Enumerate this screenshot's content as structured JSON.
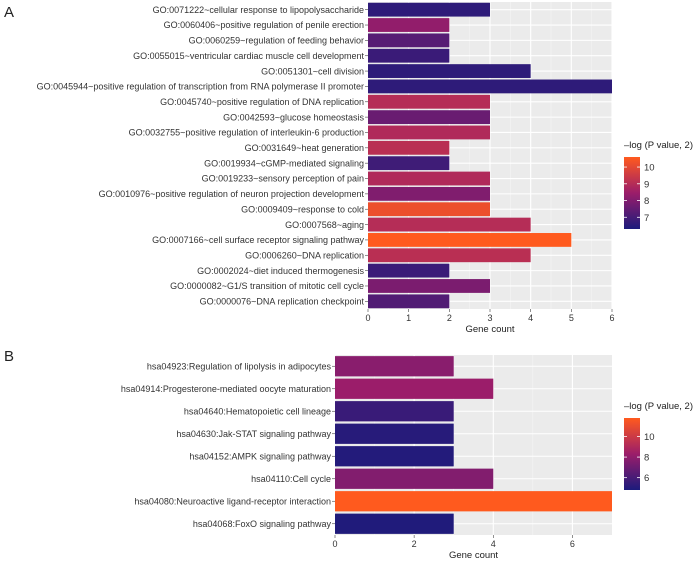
{
  "chart_data": [
    {
      "panel": "A",
      "type": "bar",
      "orientation": "horizontal",
      "xlabel": "Gene count",
      "xlim": [
        0,
        6
      ],
      "xticks": [
        0,
        1,
        2,
        3,
        4,
        5,
        6
      ],
      "grid": true,
      "legend": {
        "title": "–log (P value, 2)",
        "ticks": [
          7,
          8,
          9,
          10
        ],
        "range": [
          6.3,
          10.6
        ],
        "placement": "right"
      },
      "colors": {
        "low": "#1c1b7c",
        "mid": "#9b1d6a",
        "high": "#ff5a1e"
      },
      "categories": [
        "GO:0071222~cellular response to lipopolysaccharide",
        "GO:0060406~positive regulation of penile erection",
        "GO:0060259~regulation of feeding behavior",
        "GO:0055015~ventricular cardiac muscle cell development",
        "GO:0051301~cell division",
        "GO:0045944~positive regulation of transcription from RNA polymerase II promoter",
        "GO:0045740~positive regulation of DNA replication",
        "GO:0042593~glucose homeostasis",
        "GO:0032755~positive regulation of interleukin-6 production",
        "GO:0031649~heat generation",
        "GO:0019934~cGMP-mediated signaling",
        "GO:0019233~sensory perception of pain",
        "GO:0010976~positive regulation of neuron projection development",
        "GO:0009409~response to cold",
        "GO:0007568~aging",
        "GO:0007166~cell surface receptor signaling pathway",
        "GO:0006260~DNA replication",
        "GO:0002024~diet induced thermogenesis",
        "GO:0000082~G1/S transition of mitotic cell cycle",
        "GO:0000076~DNA replication checkpoint"
      ],
      "values": [
        3,
        2,
        2,
        2,
        4,
        6,
        3,
        3,
        3,
        2,
        2,
        3,
        3,
        3,
        4,
        5,
        4,
        2,
        3,
        2
      ],
      "color_values": [
        6.6,
        8.3,
        7.3,
        6.8,
        6.6,
        6.6,
        9.0,
        7.6,
        8.9,
        9.1,
        6.9,
        8.9,
        8.0,
        10.2,
        9.0,
        10.6,
        9.1,
        6.8,
        7.9,
        7.2
      ]
    },
    {
      "panel": "B",
      "type": "bar",
      "orientation": "horizontal",
      "xlabel": "Gene count",
      "xlim": [
        0,
        7
      ],
      "xticks": [
        0,
        2,
        4,
        6
      ],
      "grid": true,
      "legend": {
        "title": "–log (P value, 2)",
        "ticks": [
          6,
          8,
          10
        ],
        "range": [
          4.8,
          11.8
        ],
        "placement": "right"
      },
      "colors": {
        "low": "#1c1b7c",
        "mid": "#9b1d6a",
        "high": "#ff5a1e"
      },
      "categories": [
        "hsa04923:Regulation of lipolysis in adipocytes",
        "hsa04914:Progesterone-mediated oocyte maturation",
        "hsa04640:Hematopoietic cell lineage",
        "hsa04630:Jak-STAT signaling pathway",
        "hsa04152:AMPK signaling pathway",
        "hsa04110:Cell cycle",
        "hsa04080:Neuroactive ligand-receptor interaction",
        "hsa04068:FoxO signaling pathway"
      ],
      "values": [
        3,
        4,
        3,
        3,
        3,
        4,
        7,
        3
      ],
      "color_values": [
        7.8,
        8.3,
        5.6,
        5.1,
        5.0,
        7.6,
        11.8,
        4.9
      ]
    }
  ]
}
